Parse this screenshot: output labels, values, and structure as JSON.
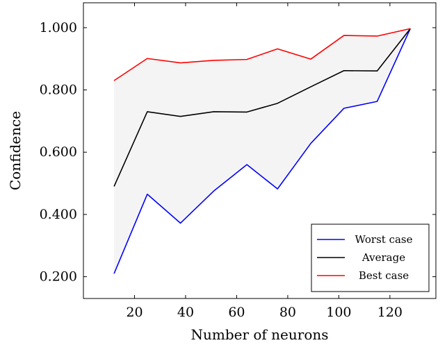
{
  "chart_data": {
    "type": "line",
    "xlabel": "Number of neurons",
    "ylabel": "Confidence",
    "xlim": [
      0,
      138
    ],
    "ylim": [
      0.13,
      1.08
    ],
    "xticks": [
      20,
      40,
      60,
      80,
      100,
      120
    ],
    "yticks": [
      0.2,
      0.4,
      0.6,
      0.8,
      1.0
    ],
    "ytick_labels": [
      "0.200",
      "0.400",
      "0.600",
      "0.800",
      "1.000"
    ],
    "x": [
      12,
      25,
      38,
      51,
      64,
      76,
      89,
      102,
      115,
      128
    ],
    "series": [
      {
        "name": "Worst case",
        "color": "#0000ff",
        "values": [
          0.21,
          0.465,
          0.372,
          0.475,
          0.56,
          0.482,
          0.628,
          0.741,
          0.763,
          0.997
        ]
      },
      {
        "name": "Average",
        "color": "#000000",
        "values": [
          0.49,
          0.73,
          0.715,
          0.73,
          0.729,
          0.757,
          0.81,
          0.862,
          0.861,
          0.997
        ]
      },
      {
        "name": "Best case",
        "color": "#ff0000",
        "values": [
          0.83,
          0.901,
          0.887,
          0.895,
          0.898,
          0.932,
          0.899,
          0.975,
          0.973,
          0.997
        ]
      }
    ],
    "fill_between": {
      "lower": "Worst case",
      "upper": "Best case",
      "color": "#f4f4f4"
    },
    "legend_position": "bottom-right",
    "grid": false
  }
}
